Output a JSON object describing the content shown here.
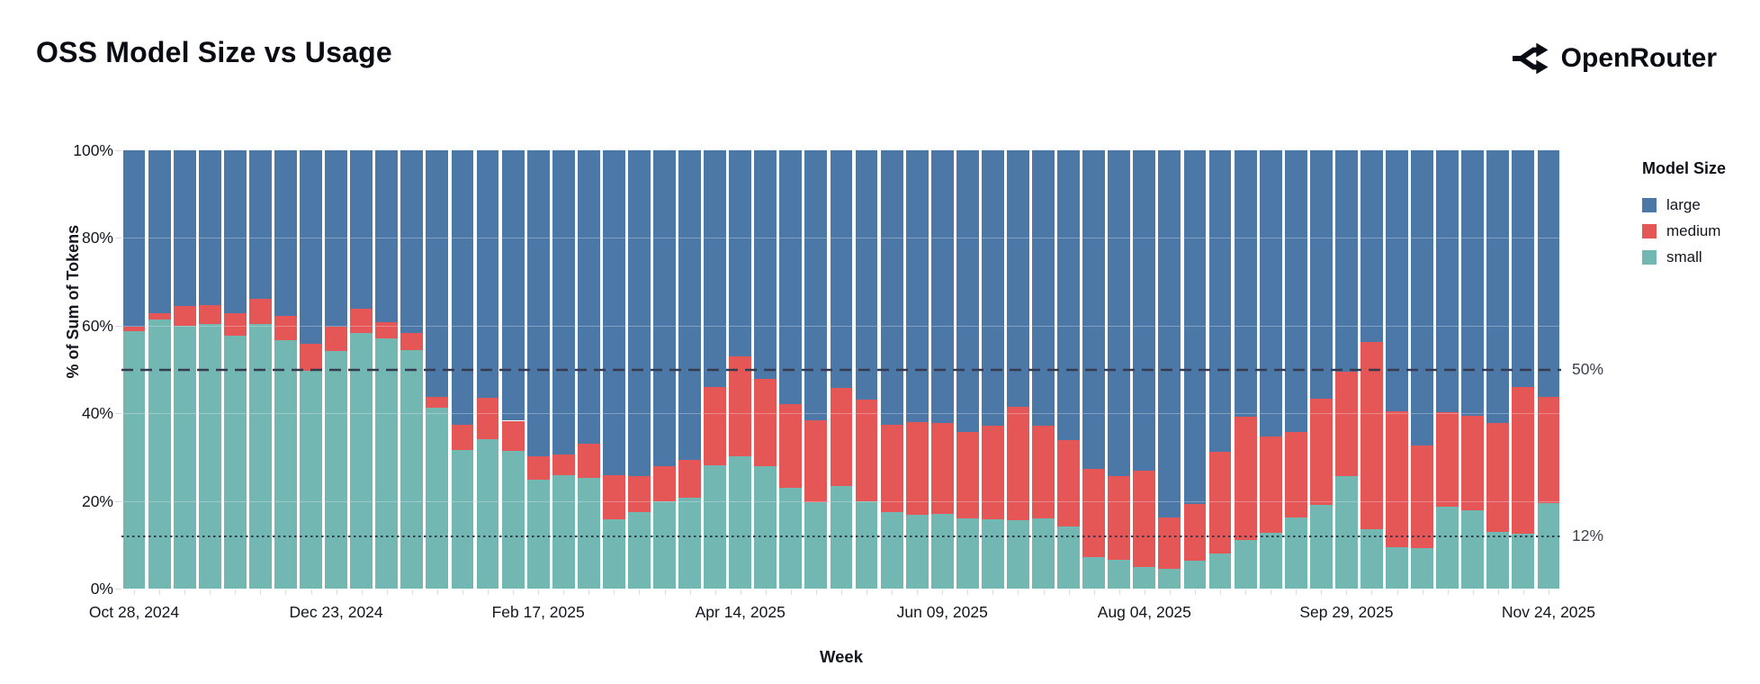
{
  "header": {
    "title": "OSS Model Size vs Usage",
    "brand": "OpenRouter"
  },
  "chart_data": {
    "type": "bar",
    "stacked": true,
    "normalized": true,
    "title": "OSS Model Size vs Usage",
    "xlabel": "Week",
    "ylabel": "% of Sum of Tokens",
    "legend_title": "Model Size",
    "legend_position": "right",
    "grid": true,
    "ylim": [
      0,
      100
    ],
    "y_ticks": [
      {
        "value": 0,
        "label": "0%"
      },
      {
        "value": 20,
        "label": "20%"
      },
      {
        "value": 40,
        "label": "40%"
      },
      {
        "value": 60,
        "label": "60%"
      },
      {
        "value": 80,
        "label": "80%"
      },
      {
        "value": 100,
        "label": "100%"
      }
    ],
    "grid_values": [
      20,
      40,
      60,
      80
    ],
    "x_tick_indices": [
      0,
      8,
      16,
      24,
      32,
      40,
      48,
      56
    ],
    "categories": [
      "Oct 28, 2024",
      "Nov 04, 2024",
      "Nov 11, 2024",
      "Nov 18, 2024",
      "Nov 25, 2024",
      "Dec 02, 2024",
      "Dec 09, 2024",
      "Dec 16, 2024",
      "Dec 23, 2024",
      "Dec 30, 2024",
      "Jan 06, 2025",
      "Jan 13, 2025",
      "Jan 20, 2025",
      "Jan 27, 2025",
      "Feb 03, 2025",
      "Feb 10, 2025",
      "Feb 17, 2025",
      "Feb 24, 2025",
      "Mar 03, 2025",
      "Mar 10, 2025",
      "Mar 17, 2025",
      "Mar 24, 2025",
      "Mar 31, 2025",
      "Apr 07, 2025",
      "Apr 14, 2025",
      "Apr 21, 2025",
      "Apr 28, 2025",
      "May 05, 2025",
      "May 12, 2025",
      "May 19, 2025",
      "May 26, 2025",
      "Jun 02, 2025",
      "Jun 09, 2025",
      "Jun 16, 2025",
      "Jun 23, 2025",
      "Jun 30, 2025",
      "Jul 07, 2025",
      "Jul 14, 2025",
      "Jul 21, 2025",
      "Jul 28, 2025",
      "Aug 04, 2025",
      "Aug 11, 2025",
      "Aug 18, 2025",
      "Aug 25, 2025",
      "Sep 01, 2025",
      "Sep 08, 2025",
      "Sep 15, 2025",
      "Sep 22, 2025",
      "Sep 29, 2025",
      "Oct 06, 2025",
      "Oct 13, 2025",
      "Oct 20, 2025",
      "Oct 27, 2025",
      "Nov 03, 2025",
      "Nov 10, 2025",
      "Nov 17, 2025",
      "Nov 24, 2025"
    ],
    "series": [
      {
        "name": "large",
        "color": "#4c78a8",
        "values": [
          40.3,
          37.2,
          35.6,
          35.4,
          37.2,
          33.8,
          37.7,
          44.2,
          40.3,
          36.2,
          39.3,
          41.6,
          56.2,
          62.7,
          56.4,
          61.7,
          69.8,
          69.4,
          67.0,
          74.1,
          74.4,
          72.1,
          70.6,
          54.0,
          47.0,
          52.2,
          57.9,
          61.7,
          54.3,
          56.9,
          62.6,
          62.1,
          62.2,
          64.3,
          62.9,
          58.6,
          62.8,
          66.1,
          72.6,
          74.4,
          73.0,
          83.8,
          80.7,
          68.7,
          60.7,
          65.2,
          64.3,
          56.7,
          50.6,
          43.7,
          59.5,
          67.3,
          59.8,
          60.5,
          62.2,
          53.9,
          56.2
        ]
      },
      {
        "name": "medium",
        "color": "#e45756",
        "values": [
          0.9,
          1.3,
          4.4,
          4.3,
          5.0,
          5.9,
          5.7,
          6.1,
          5.5,
          5.5,
          3.6,
          4.0,
          2.6,
          5.6,
          9.5,
          6.9,
          5.4,
          4.8,
          7.7,
          10.1,
          8.2,
          7.9,
          8.7,
          17.8,
          22.8,
          19.8,
          19.0,
          18.6,
          22.2,
          23.1,
          20.0,
          21.0,
          20.8,
          19.7,
          21.2,
          25.7,
          21.2,
          19.7,
          20.2,
          19.0,
          22.1,
          11.6,
          13.0,
          23.3,
          28.2,
          22.0,
          19.5,
          24.3,
          23.8,
          42.8,
          31.1,
          23.4,
          21.5,
          21.6,
          24.9,
          33.5,
          24.2
        ]
      },
      {
        "name": "small",
        "color": "#72b7b2",
        "values": [
          58.8,
          61.5,
          60.0,
          60.3,
          57.8,
          60.3,
          56.6,
          49.7,
          54.2,
          58.3,
          57.1,
          54.4,
          41.2,
          31.7,
          34.1,
          31.4,
          24.8,
          25.8,
          25.3,
          15.8,
          17.4,
          20.0,
          20.7,
          28.2,
          30.2,
          28.0,
          23.1,
          19.7,
          23.5,
          20.0,
          17.4,
          16.9,
          17.0,
          16.0,
          15.9,
          15.7,
          16.0,
          14.2,
          7.2,
          6.6,
          4.9,
          4.6,
          6.3,
          8.0,
          11.1,
          12.8,
          16.2,
          19.0,
          25.6,
          13.5,
          9.4,
          9.3,
          18.7,
          17.9,
          12.9,
          12.6,
          19.6
        ]
      }
    ],
    "annotations": [
      {
        "value": 50,
        "label": "50%",
        "style": "dashed"
      },
      {
        "value": 12,
        "label": "12%",
        "style": "dotted"
      }
    ],
    "ref_line_color": "#353b4f"
  }
}
